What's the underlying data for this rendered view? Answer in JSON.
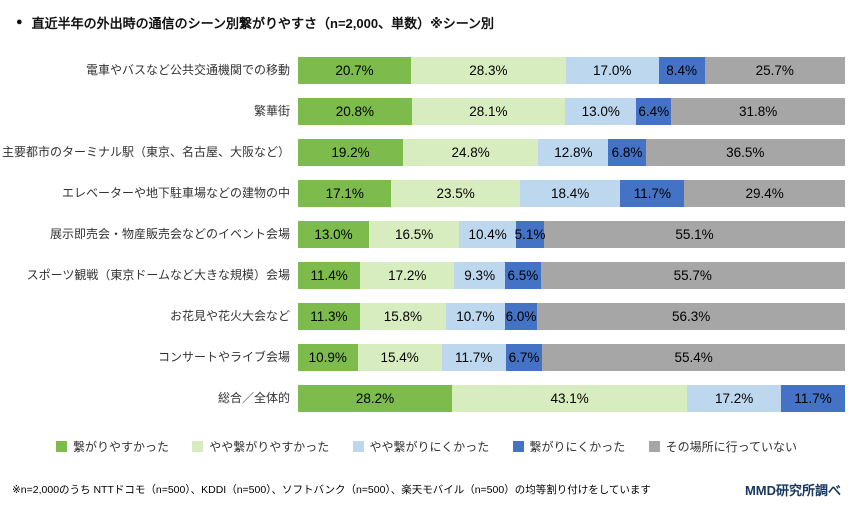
{
  "title": {
    "bullet": "●",
    "text": "直近半年の外出時の通信のシーン別繋がりやすさ（n=2,000、単数）※シーン別"
  },
  "chart_data": {
    "type": "bar",
    "orientation": "horizontal",
    "stacked": true,
    "unit": "%",
    "xlim": [
      0,
      100
    ],
    "grid": false,
    "legend_position": "bottom",
    "categories": [
      "電車やバスなど公共交通機関での移動",
      "繁華街",
      "主要都市のターミナル駅（東京、名古屋、大阪など）",
      "エレベーターや地下駐車場などの建物の中",
      "展示即売会・物産販売会などのイベント会場",
      "スポーツ観戦（東京ドームなど大きな規模）会場",
      "お花見や花火大会など",
      "コンサートやライブ会場",
      "総合／全体的"
    ],
    "series": [
      {
        "name": "繋がりやすかった",
        "color": "#7cbb4c",
        "values": [
          20.7,
          20.8,
          19.2,
          17.1,
          13.0,
          11.4,
          11.3,
          10.9,
          28.2
        ]
      },
      {
        "name": "やや繋がりやすかった",
        "color": "#d8edbf",
        "values": [
          28.3,
          28.1,
          24.8,
          23.5,
          16.5,
          17.2,
          15.8,
          15.4,
          43.1
        ]
      },
      {
        "name": "やや繋がりにくかった",
        "color": "#bdd7ee",
        "values": [
          17.0,
          13.0,
          12.8,
          18.4,
          10.4,
          9.3,
          10.7,
          11.7,
          17.2
        ]
      },
      {
        "name": "繋がりにくかった",
        "color": "#4472c4",
        "values": [
          8.4,
          6.4,
          6.8,
          11.7,
          5.1,
          6.5,
          6.0,
          6.7,
          11.7
        ]
      },
      {
        "name": "その場所に行っていない",
        "color": "#a6a6a6",
        "values": [
          25.7,
          31.8,
          36.5,
          29.4,
          55.1,
          55.7,
          56.3,
          55.4,
          0
        ]
      }
    ]
  },
  "footnote": "※n=2,000のうち NTTドコモ（n=500）、KDDI（n=500）、ソフトバンク（n=500）、楽天モバイル（n=500）の均等割り付けをしています",
  "source": "MMD研究所調べ"
}
